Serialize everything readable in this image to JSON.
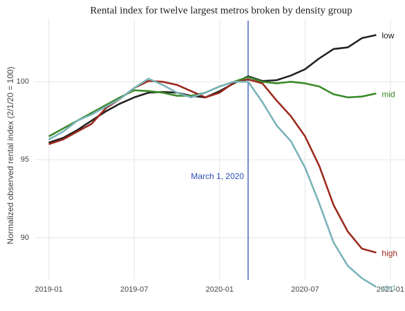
{
  "chart_data": {
    "type": "line",
    "title": "Rental index for twelve largest metros broken by density group",
    "y_label": "Normalized observed rental index (2/1/20 = 100)",
    "x": [
      "2019-01",
      "2019-02",
      "2019-03",
      "2019-04",
      "2019-05",
      "2019-06",
      "2019-07",
      "2019-08",
      "2019-09",
      "2019-10",
      "2019-11",
      "2019-12",
      "2020-01",
      "2020-02",
      "2020-03",
      "2020-04",
      "2020-05",
      "2020-06",
      "2020-07",
      "2020-08",
      "2020-09",
      "2020-10",
      "2020-11",
      "2020-12"
    ],
    "series": [
      {
        "name": "low",
        "color": "#222222",
        "values": [
          96.1,
          96.4,
          96.9,
          97.5,
          98.1,
          98.6,
          99.0,
          99.3,
          99.35,
          99.3,
          99.1,
          99.0,
          99.4,
          99.9,
          100.35,
          100.05,
          100.1,
          100.4,
          100.8,
          101.5,
          102.1,
          102.2,
          102.8,
          103.0
        ]
      },
      {
        "name": "mid",
        "color": "#3a8a2a",
        "values": [
          96.5,
          97.0,
          97.5,
          98.0,
          98.5,
          99.0,
          99.45,
          99.4,
          99.3,
          99.1,
          99.1,
          99.3,
          99.7,
          100.0,
          100.3,
          100.0,
          99.9,
          100.0,
          99.9,
          99.7,
          99.2,
          99.0,
          99.05,
          99.25
        ]
      },
      {
        "name": "high",
        "color": "#9b2a1e",
        "values": [
          96.0,
          96.3,
          96.8,
          97.3,
          98.3,
          98.9,
          99.6,
          100.05,
          100.0,
          99.8,
          99.4,
          99.0,
          99.3,
          99.95,
          100.15,
          99.9,
          98.8,
          97.8,
          96.5,
          94.6,
          92.1,
          90.4,
          89.3,
          89.05
        ]
      },
      {
        "name": "cbd",
        "color": "#7ab3b8",
        "values": [
          96.3,
          96.8,
          97.5,
          97.9,
          98.4,
          98.9,
          99.6,
          100.2,
          99.8,
          99.3,
          99.0,
          99.3,
          99.7,
          100.0,
          100.0,
          98.7,
          97.2,
          96.2,
          94.5,
          92.2,
          89.7,
          88.2,
          87.4,
          86.85
        ]
      }
    ],
    "vline": {
      "x": "2020-03",
      "label": "March 1, 2020",
      "color": "#2a4fb5"
    },
    "xlim": [
      "2018-12",
      "2021-01"
    ],
    "xticks": [
      "2019-01",
      "2019-07",
      "2020-01",
      "2020-07",
      "2021-01"
    ],
    "ylim": [
      87.3,
      104
    ],
    "yticks": [
      90,
      95,
      100
    ],
    "grid": true
  }
}
